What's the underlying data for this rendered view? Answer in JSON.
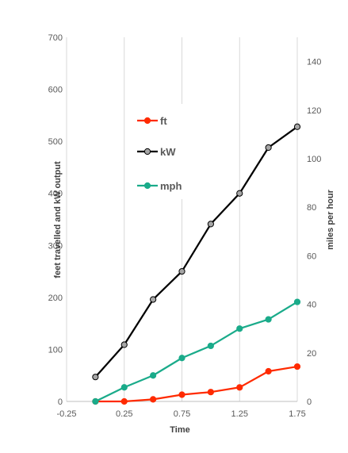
{
  "chart_data": {
    "type": "line",
    "x": [
      0,
      0.25,
      0.5,
      0.75,
      1.0,
      1.25,
      1.5,
      1.75
    ],
    "series": [
      {
        "name": "ft",
        "axis": "left",
        "color": "#ff2a00",
        "values": [
          0,
          0,
          4,
          13,
          18,
          27,
          58,
          67
        ]
      },
      {
        "name": "kW",
        "axis": "left",
        "color": "#000000",
        "values": [
          47,
          109,
          196,
          250,
          341,
          400,
          488,
          528
        ]
      },
      {
        "name": "mph",
        "axis": "right",
        "color": "#1aab8a",
        "values": [
          0,
          5.8,
          10.7,
          17.9,
          22.9,
          30.0,
          33.8,
          41.0
        ]
      }
    ],
    "xlabel": "Time",
    "ylabel": "feet travelled and kW output",
    "y2label": "miles per hour",
    "xlim": [
      -0.25,
      1.75
    ],
    "ylim": [
      0,
      700
    ],
    "y2lim": [
      0,
      150
    ],
    "xticks": [
      "-0.25",
      "0.25",
      "0.75",
      "1.25",
      "1.75"
    ],
    "yticks": [
      "0",
      "100",
      "200",
      "300",
      "400",
      "500",
      "600",
      "700"
    ],
    "y2ticks": [
      "0",
      "20",
      "40",
      "60",
      "80",
      "100",
      "120",
      "140"
    ],
    "grid": "vertical",
    "legend_position": "upper-left-inside"
  }
}
